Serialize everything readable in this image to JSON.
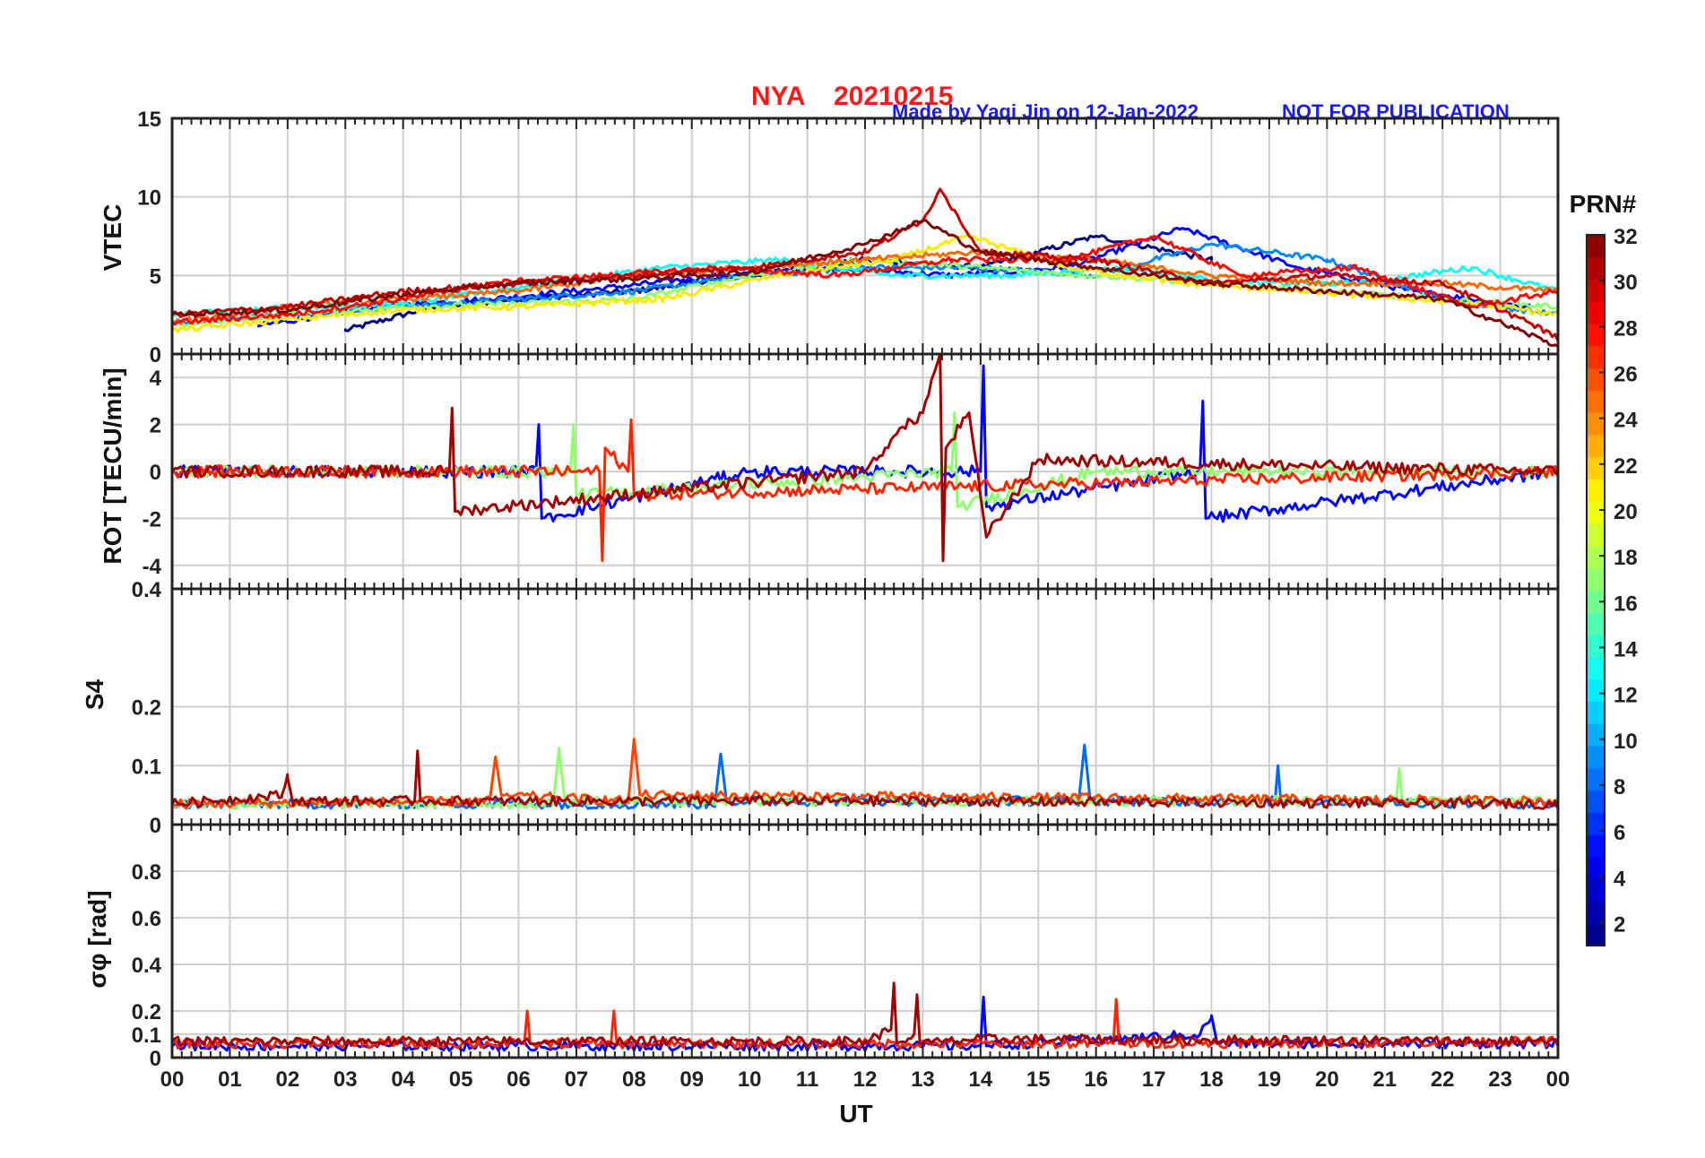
{
  "header": {
    "station": "NYA",
    "date": "20210215",
    "credit": "Made by Yaqi Jin on 12-Jan-2022",
    "notice": "NOT FOR PUBLICATION"
  },
  "colors": {
    "title_red": "#ff1a1a",
    "credit_blue": "#1a1aff",
    "frame": "#222222",
    "grid": "#cfcfcf"
  },
  "chart_data": {
    "type": "line",
    "xlabel": "UT",
    "x_tick_labels": [
      "00",
      "01",
      "02",
      "03",
      "04",
      "05",
      "06",
      "07",
      "08",
      "09",
      "10",
      "11",
      "12",
      "13",
      "14",
      "15",
      "16",
      "17",
      "18",
      "19",
      "20",
      "21",
      "22",
      "23",
      "00"
    ],
    "xlim": [
      0,
      24
    ],
    "colorbar": {
      "label": "PRN#",
      "range": [
        1,
        32
      ],
      "tick_labels": [
        "2",
        "4",
        "6",
        "8",
        "10",
        "12",
        "14",
        "16",
        "18",
        "20",
        "22",
        "24",
        "26",
        "28",
        "30",
        "32"
      ],
      "colormap": "jet"
    },
    "panels": [
      {
        "id": "vtec",
        "ylabel": "VTEC",
        "ylim": [
          0,
          15
        ],
        "y_ticks": [
          0,
          5,
          10,
          15
        ],
        "y_tick_labels": [
          "0",
          "5",
          "10",
          "15"
        ],
        "series": [
          {
            "name": "PRN 1",
            "prn": 1,
            "x": [
              3.0,
              4.5,
              6.0,
              8.0,
              10.0,
              12.0,
              14.0,
              16.0,
              18.0
            ],
            "values": [
              1.5,
              3.0,
              3.5,
              4.0,
              5.0,
              6.0,
              5.5,
              7.5,
              6.0
            ]
          },
          {
            "name": "PRN 5",
            "prn": 5,
            "x": [
              1.5,
              3.5,
              5.5,
              7.5,
              9.5,
              11.5,
              13.5,
              15.5,
              17.5,
              19.5,
              21.5,
              23.5
            ],
            "values": [
              1.8,
              3.0,
              3.5,
              4.2,
              5.0,
              5.5,
              5.0,
              5.5,
              8.0,
              5.5,
              4.0,
              3.0
            ]
          },
          {
            "name": "PRN 9",
            "prn": 9,
            "x": [
              0.0,
              2.0,
              4.0,
              6.0,
              8.0,
              10.0,
              12.0,
              14.0,
              16.0,
              18.0,
              20.0,
              22.0,
              24.0
            ],
            "values": [
              2.0,
              2.5,
              3.0,
              3.5,
              4.0,
              5.0,
              5.5,
              5.5,
              5.0,
              7.0,
              6.0,
              3.5,
              2.5
            ]
          },
          {
            "name": "PRN 13",
            "prn": 13,
            "x": [
              0.0,
              2.0,
              4.0,
              6.5,
              8.5,
              10.5,
              12.5,
              14.5,
              16.5,
              18.5,
              20.5,
              22.5,
              24.0
            ],
            "values": [
              2.5,
              3.0,
              3.2,
              4.5,
              5.5,
              6.0,
              5.0,
              5.0,
              5.5,
              4.5,
              4.5,
              5.5,
              4.0
            ]
          },
          {
            "name": "PRN 17",
            "prn": 17,
            "x": [
              0.0,
              2.0,
              4.0,
              6.0,
              8.0,
              10.0,
              12.0,
              14.0,
              16.0,
              18.0,
              20.0,
              22.0,
              24.0
            ],
            "values": [
              1.8,
              2.5,
              3.0,
              3.2,
              3.5,
              5.0,
              6.0,
              5.5,
              5.0,
              4.5,
              4.0,
              3.5,
              3.0
            ]
          },
          {
            "name": "PRN 21",
            "prn": 21,
            "x": [
              0.0,
              2.0,
              4.0,
              6.0,
              8.5,
              10.5,
              12.5,
              13.8,
              15.5,
              17.5,
              19.5,
              21.5,
              23.0,
              24.0
            ],
            "values": [
              1.5,
              2.2,
              2.8,
              3.0,
              3.5,
              5.0,
              6.0,
              7.5,
              5.5,
              4.5,
              4.0,
              3.5,
              3.0,
              2.5
            ]
          },
          {
            "name": "PRN 25",
            "prn": 25,
            "x": [
              0.0,
              2.0,
              4.0,
              6.0,
              8.0,
              10.0,
              12.0,
              14.0,
              16.0,
              18.0,
              20.0,
              22.0,
              24.0
            ],
            "values": [
              2.0,
              3.0,
              3.5,
              4.0,
              5.0,
              5.5,
              6.0,
              6.5,
              6.0,
              5.0,
              4.5,
              4.5,
              4.0
            ]
          },
          {
            "name": "PRN 28",
            "prn": 28,
            "x": [
              0.0,
              2.0,
              4.0,
              5.5,
              7.5,
              9.5,
              11.5,
              13.5,
              15.5,
              17.0,
              18.5,
              20.5,
              22.5,
              24.0
            ],
            "values": [
              2.0,
              2.5,
              3.5,
              4.5,
              5.0,
              5.5,
              5.0,
              6.0,
              6.0,
              7.5,
              5.0,
              5.5,
              3.0,
              4.0
            ]
          },
          {
            "name": "PRN 30",
            "prn": 30,
            "x": [
              0.0,
              2.0,
              4.0,
              6.0,
              8.0,
              10.0,
              12.0,
              13.0,
              13.3,
              14.0,
              16.0,
              18.0,
              20.0,
              22.0,
              23.5,
              24.0
            ],
            "values": [
              2.5,
              3.0,
              4.0,
              4.5,
              5.0,
              5.5,
              6.5,
              8.5,
              10.5,
              6.5,
              6.0,
              4.5,
              5.0,
              4.5,
              2.0,
              1.0
            ]
          },
          {
            "name": "PRN 32",
            "prn": 32,
            "x": [
              0.0,
              2.0,
              4.0,
              6.0,
              8.0,
              10.0,
              12.0,
              13.0,
              14.0,
              16.0,
              18.0,
              20.0,
              22.0,
              24.0
            ],
            "values": [
              2.5,
              2.8,
              3.8,
              4.5,
              4.8,
              5.2,
              7.0,
              8.5,
              6.5,
              5.5,
              4.5,
              4.0,
              3.5,
              0.5
            ]
          }
        ]
      },
      {
        "id": "rot",
        "ylabel": "ROT [TECU/min]",
        "ylim": [
          -5,
          5
        ],
        "y_ticks": [
          -4,
          -2,
          0,
          2,
          4
        ],
        "y_tick_labels": [
          "-4",
          "-2",
          "0",
          "2",
          "4"
        ],
        "series": [
          {
            "name": "PRN 5",
            "prn": 5,
            "x": [
              0.0,
              4.0,
              6.3,
              6.35,
              6.4,
              10.0,
              12.0,
              14.0,
              14.05,
              14.1,
              17.8,
              17.85,
              17.9,
              24.0
            ],
            "values": [
              0.0,
              0.0,
              0.0,
              2.0,
              -2.0,
              0.0,
              0.0,
              0.0,
              4.5,
              -1.5,
              0.0,
              3.0,
              -2.0,
              0.0
            ]
          },
          {
            "name": "PRN 17",
            "prn": 17,
            "x": [
              0.0,
              6.9,
              6.95,
              7.0,
              13.5,
              13.55,
              13.6,
              16.0,
              24.0
            ],
            "values": [
              0.0,
              0.0,
              2.0,
              -1.0,
              0.0,
              2.5,
              -1.5,
              0.0,
              0.0
            ]
          },
          {
            "name": "PRN 27",
            "prn": 27,
            "x": [
              0.0,
              7.4,
              7.45,
              7.5,
              7.9,
              7.95,
              8.0,
              24.0
            ],
            "values": [
              0.0,
              0.0,
              -3.8,
              1.0,
              0.0,
              2.2,
              -1.0,
              0.0
            ]
          },
          {
            "name": "PRN 31",
            "prn": 31,
            "x": [
              0.0,
              4.8,
              4.85,
              4.9,
              12.0,
              12.5,
              13.0,
              13.3,
              13.35,
              13.4,
              13.8,
              14.1,
              15.0,
              24.0
            ],
            "values": [
              0.0,
              0.0,
              2.7,
              -1.7,
              0.0,
              1.5,
              2.5,
              5.0,
              -3.8,
              1.0,
              2.5,
              -2.8,
              0.5,
              0.0
            ]
          }
        ]
      },
      {
        "id": "s4",
        "ylabel": "S4",
        "ylim": [
          0,
          0.4
        ],
        "y_ticks": [
          0,
          0.1,
          0.2,
          0.4
        ],
        "y_tick_labels": [
          "0",
          "0.1",
          "0.2",
          "0.4"
        ],
        "series": [
          {
            "name": "PRN 8",
            "prn": 8,
            "x": [
              0.0,
              9.4,
              9.5,
              9.6,
              15.7,
              15.8,
              15.9,
              19.1,
              19.15,
              19.2,
              24.0
            ],
            "values": [
              0.035,
              0.035,
              0.12,
              0.04,
              0.04,
              0.135,
              0.04,
              0.04,
              0.1,
              0.04,
              0.035
            ]
          },
          {
            "name": "PRN 17",
            "prn": 17,
            "x": [
              0.0,
              6.6,
              6.7,
              6.8,
              14.0,
              21.2,
              21.25,
              21.3,
              24.0
            ],
            "values": [
              0.035,
              0.035,
              0.13,
              0.04,
              0.04,
              0.04,
              0.095,
              0.04,
              0.04
            ]
          },
          {
            "name": "PRN 26",
            "prn": 26,
            "x": [
              0.0,
              5.5,
              5.6,
              5.7,
              7.9,
              8.0,
              8.1,
              24.0
            ],
            "values": [
              0.035,
              0.04,
              0.115,
              0.05,
              0.04,
              0.145,
              0.05,
              0.04
            ]
          },
          {
            "name": "PRN 31",
            "prn": 31,
            "x": [
              0.0,
              1.9,
              2.0,
              2.1,
              4.2,
              4.25,
              4.3,
              12.0,
              24.0
            ],
            "values": [
              0.035,
              0.05,
              0.08,
              0.04,
              0.04,
              0.125,
              0.04,
              0.04,
              0.035
            ]
          }
        ]
      },
      {
        "id": "sigma_phi",
        "ylabel": "σφ [rad]",
        "ylim": [
          0,
          1
        ],
        "y_ticks": [
          0,
          0.1,
          0.2,
          0.4,
          0.6,
          0.8
        ],
        "y_tick_labels": [
          "0",
          "0.1",
          "0.2",
          "0.4",
          "0.6",
          "0.8"
        ],
        "series": [
          {
            "name": "PRN 5",
            "prn": 5,
            "x": [
              0.0,
              14.0,
              14.05,
              14.1,
              17.8,
              18.0,
              18.1,
              24.0
            ],
            "values": [
              0.05,
              0.05,
              0.26,
              0.05,
              0.1,
              0.18,
              0.06,
              0.06
            ]
          },
          {
            "name": "PRN 27",
            "prn": 27,
            "x": [
              0.0,
              6.1,
              6.15,
              6.2,
              7.6,
              7.65,
              7.7,
              16.3,
              16.35,
              16.4,
              24.0
            ],
            "values": [
              0.06,
              0.06,
              0.2,
              0.06,
              0.06,
              0.2,
              0.06,
              0.06,
              0.25,
              0.06,
              0.07
            ]
          },
          {
            "name": "PRN 31",
            "prn": 31,
            "x": [
              0.0,
              12.0,
              12.45,
              12.5,
              12.55,
              12.85,
              12.9,
              12.95,
              14.0,
              24.0
            ],
            "values": [
              0.07,
              0.07,
              0.12,
              0.32,
              0.06,
              0.1,
              0.27,
              0.06,
              0.08,
              0.07
            ]
          }
        ]
      }
    ]
  }
}
